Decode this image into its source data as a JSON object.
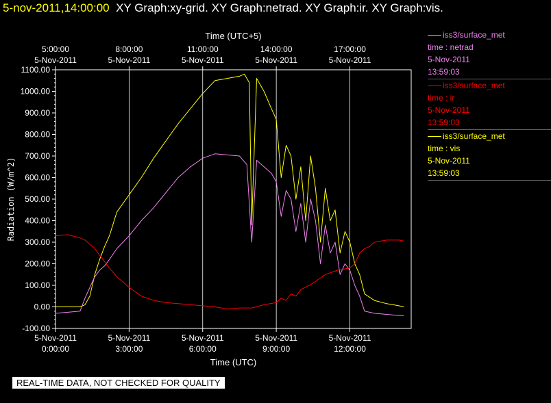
{
  "header": {
    "timestamp": "5-nov-2011,14:00:00",
    "graphs": "XY Graph:xy-grid.  XY Graph:netrad.  XY Graph:ir.  XY Graph:vis."
  },
  "disclaimer": "REAL-TIME DATA, NOT CHECKED FOR QUALITY",
  "colors": {
    "netrad": "#ee82ee",
    "ir": "#ff0000",
    "vis": "#ffff00",
    "grid": "#ffffff"
  },
  "legend": [
    {
      "source": "iss3/surface_met",
      "field": "time : netrad",
      "date": "5-Nov-2011",
      "time": "13:59:03",
      "color": "#ee82ee"
    },
    {
      "source": "iss3/surface_met",
      "field": "time : ir",
      "date": "5-Nov-2011",
      "time": "13:59:03",
      "color": "#ff0000"
    },
    {
      "source": "iss3/surface_met",
      "field": "time : vis",
      "date": "5-Nov-2011",
      "time": "13:59:03",
      "color": "#ffff00"
    }
  ],
  "chart_data": {
    "type": "line",
    "xlabel": "Time (UTC)",
    "x2label": "Time (UTC+5)",
    "ylabel": "Radiation (W/m^2)",
    "xlim": [
      0,
      14.5
    ],
    "ylim": [
      -100,
      1100
    ],
    "yticks": [
      "-100.00",
      "0.00",
      "100.00",
      "200.00",
      "300.00",
      "400.00",
      "500.00",
      "600.00",
      "700.00",
      "800.00",
      "900.00",
      "1000.00",
      "1100.00"
    ],
    "xticks": [
      {
        "x": 0,
        "date": "5-Nov-2011",
        "time": "0:00:00"
      },
      {
        "x": 3,
        "date": "5-Nov-2011",
        "time": "3:00:00"
      },
      {
        "x": 6,
        "date": "5-Nov-2011",
        "time": "6:00:00"
      },
      {
        "x": 9,
        "date": "5-Nov-2011",
        "time": "9:00:00"
      },
      {
        "x": 12,
        "date": "5-Nov-2011",
        "time": "12:00:00"
      }
    ],
    "x2ticks": [
      {
        "x": 0,
        "time": "5:00:00",
        "date": "5-Nov-2011"
      },
      {
        "x": 3,
        "time": "8:00:00",
        "date": "5-Nov-2011"
      },
      {
        "x": 6,
        "time": "11:00:00",
        "date": "5-Nov-2011"
      },
      {
        "x": 9,
        "time": "14:00:00",
        "date": "5-Nov-2011"
      },
      {
        "x": 12,
        "time": "17:00:00",
        "date": "5-Nov-2011"
      }
    ],
    "grid": "vertical",
    "series": [
      {
        "name": "time : vis",
        "color": "#ffff00",
        "x": [
          0,
          1,
          1.2,
          1.4,
          1.6,
          1.8,
          2,
          2.2,
          2.5,
          3,
          3.5,
          4,
          4.5,
          5,
          5.5,
          6,
          6.5,
          7,
          7.5,
          7.7,
          7.9,
          8,
          8.2,
          8.5,
          8.8,
          9,
          9.2,
          9.4,
          9.6,
          9.8,
          10,
          10.2,
          10.4,
          10.6,
          10.8,
          11,
          11.2,
          11.4,
          11.6,
          11.8,
          12,
          12.2,
          12.4,
          12.6,
          13,
          13.5,
          14,
          14.2
        ],
        "values": [
          0,
          0,
          10,
          50,
          150,
          220,
          280,
          330,
          440,
          520,
          600,
          690,
          770,
          850,
          920,
          990,
          1050,
          1060,
          1070,
          1080,
          1040,
          380,
          1060,
          1000,
          920,
          870,
          600,
          750,
          700,
          500,
          650,
          400,
          700,
          550,
          300,
          550,
          400,
          450,
          250,
          350,
          300,
          200,
          150,
          60,
          30,
          15,
          5,
          0
        ]
      },
      {
        "name": "time : netrad",
        "color": "#ee82ee",
        "x": [
          0,
          0.5,
          1,
          1.2,
          1.4,
          1.6,
          1.8,
          2,
          2.2,
          2.5,
          3,
          3.5,
          4,
          4.5,
          5,
          5.5,
          6,
          6.5,
          7,
          7.5,
          7.8,
          8,
          8.2,
          8.5,
          8.8,
          9,
          9.2,
          9.4,
          9.6,
          9.8,
          10,
          10.2,
          10.4,
          10.6,
          10.8,
          11,
          11.2,
          11.4,
          11.6,
          11.8,
          12,
          12.2,
          12.4,
          12.6,
          13,
          13.5,
          14,
          14.2
        ],
        "values": [
          -30,
          -25,
          -20,
          40,
          90,
          140,
          170,
          190,
          220,
          270,
          330,
          400,
          460,
          530,
          600,
          650,
          690,
          710,
          705,
          700,
          660,
          300,
          680,
          650,
          620,
          580,
          420,
          540,
          500,
          350,
          480,
          300,
          500,
          400,
          200,
          380,
          250,
          300,
          150,
          200,
          170,
          100,
          50,
          -20,
          -30,
          -35,
          -40,
          -40
        ]
      },
      {
        "name": "time : ir",
        "color": "#ff0000",
        "x": [
          0,
          0.5,
          1,
          1.2,
          1.4,
          1.6,
          1.8,
          2,
          2.2,
          2.5,
          3,
          3.5,
          4,
          4.5,
          5,
          5.5,
          6,
          6.5,
          7,
          7.5,
          8,
          8.5,
          9,
          9.2,
          9.4,
          9.6,
          9.8,
          10,
          10.5,
          11,
          11.5,
          12,
          12.2,
          12.4,
          12.6,
          12.8,
          13,
          13.5,
          14,
          14.2
        ],
        "values": [
          330,
          335,
          320,
          310,
          290,
          270,
          240,
          210,
          180,
          140,
          90,
          50,
          30,
          20,
          15,
          10,
          5,
          0,
          -10,
          -5,
          -5,
          10,
          20,
          40,
          30,
          60,
          50,
          80,
          110,
          150,
          170,
          180,
          200,
          250,
          270,
          280,
          300,
          310,
          310,
          305
        ]
      }
    ]
  }
}
